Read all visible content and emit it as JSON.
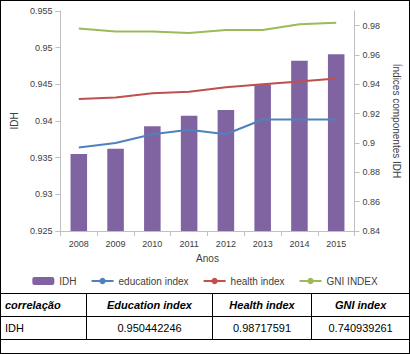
{
  "chart_data": {
    "type": "bar",
    "x_label": "Anos",
    "y_label": "IDH",
    "y2_label": "Índices componentes IDH",
    "categories": [
      "2008",
      "2009",
      "2010",
      "2011",
      "2012",
      "2013",
      "2014",
      "2015"
    ],
    "series": [
      {
        "name": "IDH",
        "type": "bar",
        "axis": "y",
        "color": "#8064a2",
        "values": [
          0.9355,
          0.9362,
          0.9393,
          0.9407,
          0.9415,
          0.945,
          0.9482,
          0.9491
        ]
      },
      {
        "name": "education index",
        "type": "line",
        "axis": "y2",
        "color": "#4f81bd",
        "values": [
          0.897,
          0.9,
          0.906,
          0.909,
          0.906,
          0.916,
          0.916,
          0.916
        ]
      },
      {
        "name": "health index",
        "type": "line",
        "axis": "y2",
        "color": "#c0504d",
        "values": [
          0.93,
          0.931,
          0.934,
          0.935,
          0.938,
          0.94,
          0.942,
          0.944
        ]
      },
      {
        "name": "GNI INDEX",
        "type": "line",
        "axis": "y2",
        "color": "#9bbb59",
        "values": [
          0.978,
          0.976,
          0.976,
          0.975,
          0.977,
          0.977,
          0.981,
          0.982
        ]
      }
    ],
    "ylim": [
      0.925,
      0.955
    ],
    "yticks": [
      0.925,
      0.93,
      0.935,
      0.94,
      0.945,
      0.95,
      0.955
    ],
    "y2lim": [
      0.84,
      0.99
    ],
    "y2ticks": [
      0.84,
      0.86,
      0.88,
      0.9,
      0.92,
      0.94,
      0.96,
      0.98
    ],
    "grid": false,
    "legend": "bottom"
  },
  "table": {
    "header": [
      "correlação",
      "Education index",
      "Health index",
      "GNI index"
    ],
    "rows": [
      [
        "IDH",
        0.950442246,
        0.98717591,
        0.740939261
      ]
    ]
  }
}
